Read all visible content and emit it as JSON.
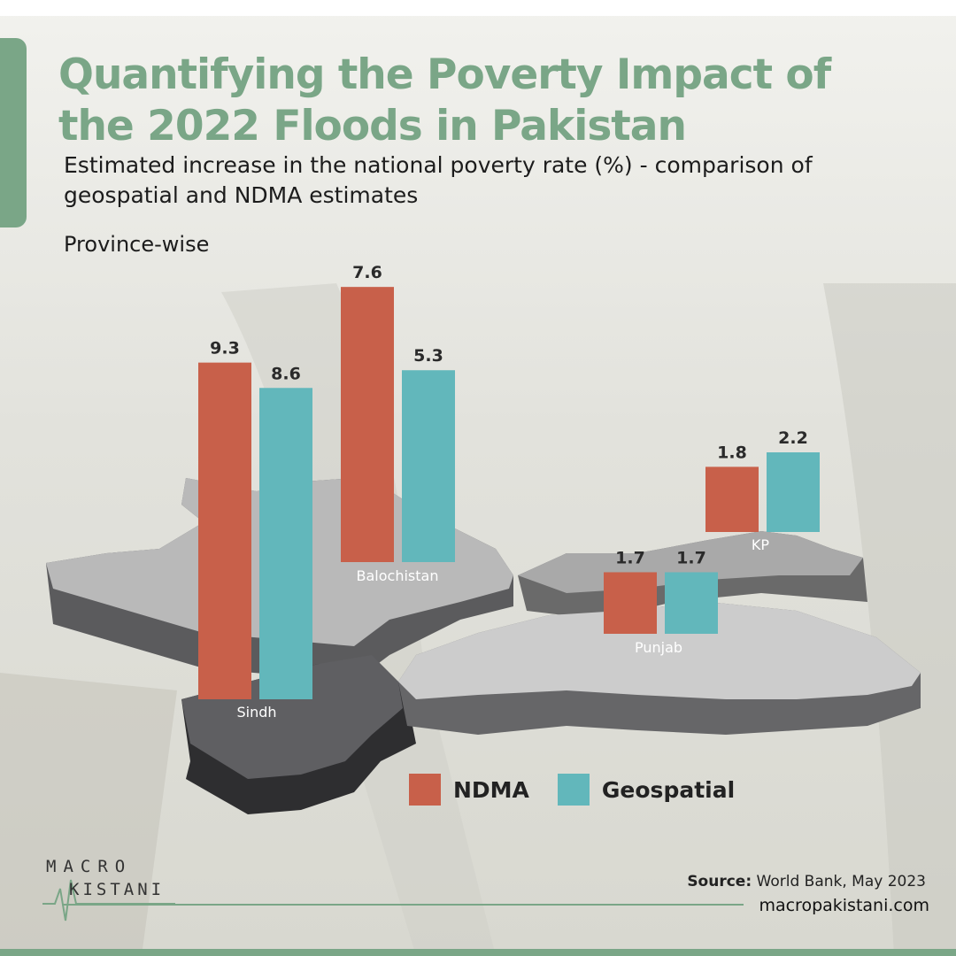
{
  "header": {
    "title": "Quantifying the Poverty Impact of the 2022 Floods in Pakistan",
    "subtitle": "Estimated increase in the national poverty rate (%) - comparison of geospatial and NDMA estimates",
    "scope_label": "Province-wise"
  },
  "chart_data": {
    "type": "bar",
    "title": "Quantifying the Poverty Impact of the 2022 Floods in Pakistan",
    "subtitle": "Estimated increase in the national poverty rate (%) - comparison of geospatial and NDMA estimates",
    "categories": [
      "Sindh",
      "Balochistan",
      "Punjab",
      "KP"
    ],
    "series": [
      {
        "name": "NDMA",
        "values": [
          9.3,
          7.6,
          1.7,
          1.8
        ],
        "color": "#c8604a"
      },
      {
        "name": "Geospatial",
        "values": [
          8.6,
          5.3,
          1.7,
          2.2
        ],
        "color": "#62b7bb"
      }
    ],
    "value_labels": [
      "9.3",
      "8.6",
      "7.6",
      "5.3",
      "1.7",
      "1.7",
      "1.8",
      "2.2"
    ],
    "xlabel": "",
    "ylabel": "",
    "grid": false,
    "legend_position": "bottom-right"
  },
  "legend": {
    "ndma_label": "NDMA",
    "geospatial_label": "Geospatial"
  },
  "footer": {
    "logo_top": "MACRO",
    "logo_bottom": "KISTANI",
    "source_label": "Source:",
    "source_text": " World Bank, May 2023",
    "website": "macropakistani.com"
  },
  "colors": {
    "accent_green": "#7aa687",
    "ndma": "#c8604a",
    "geospatial": "#62b7bb",
    "map_light": "#b9b9b9",
    "map_dark": "#5a5a5c"
  }
}
